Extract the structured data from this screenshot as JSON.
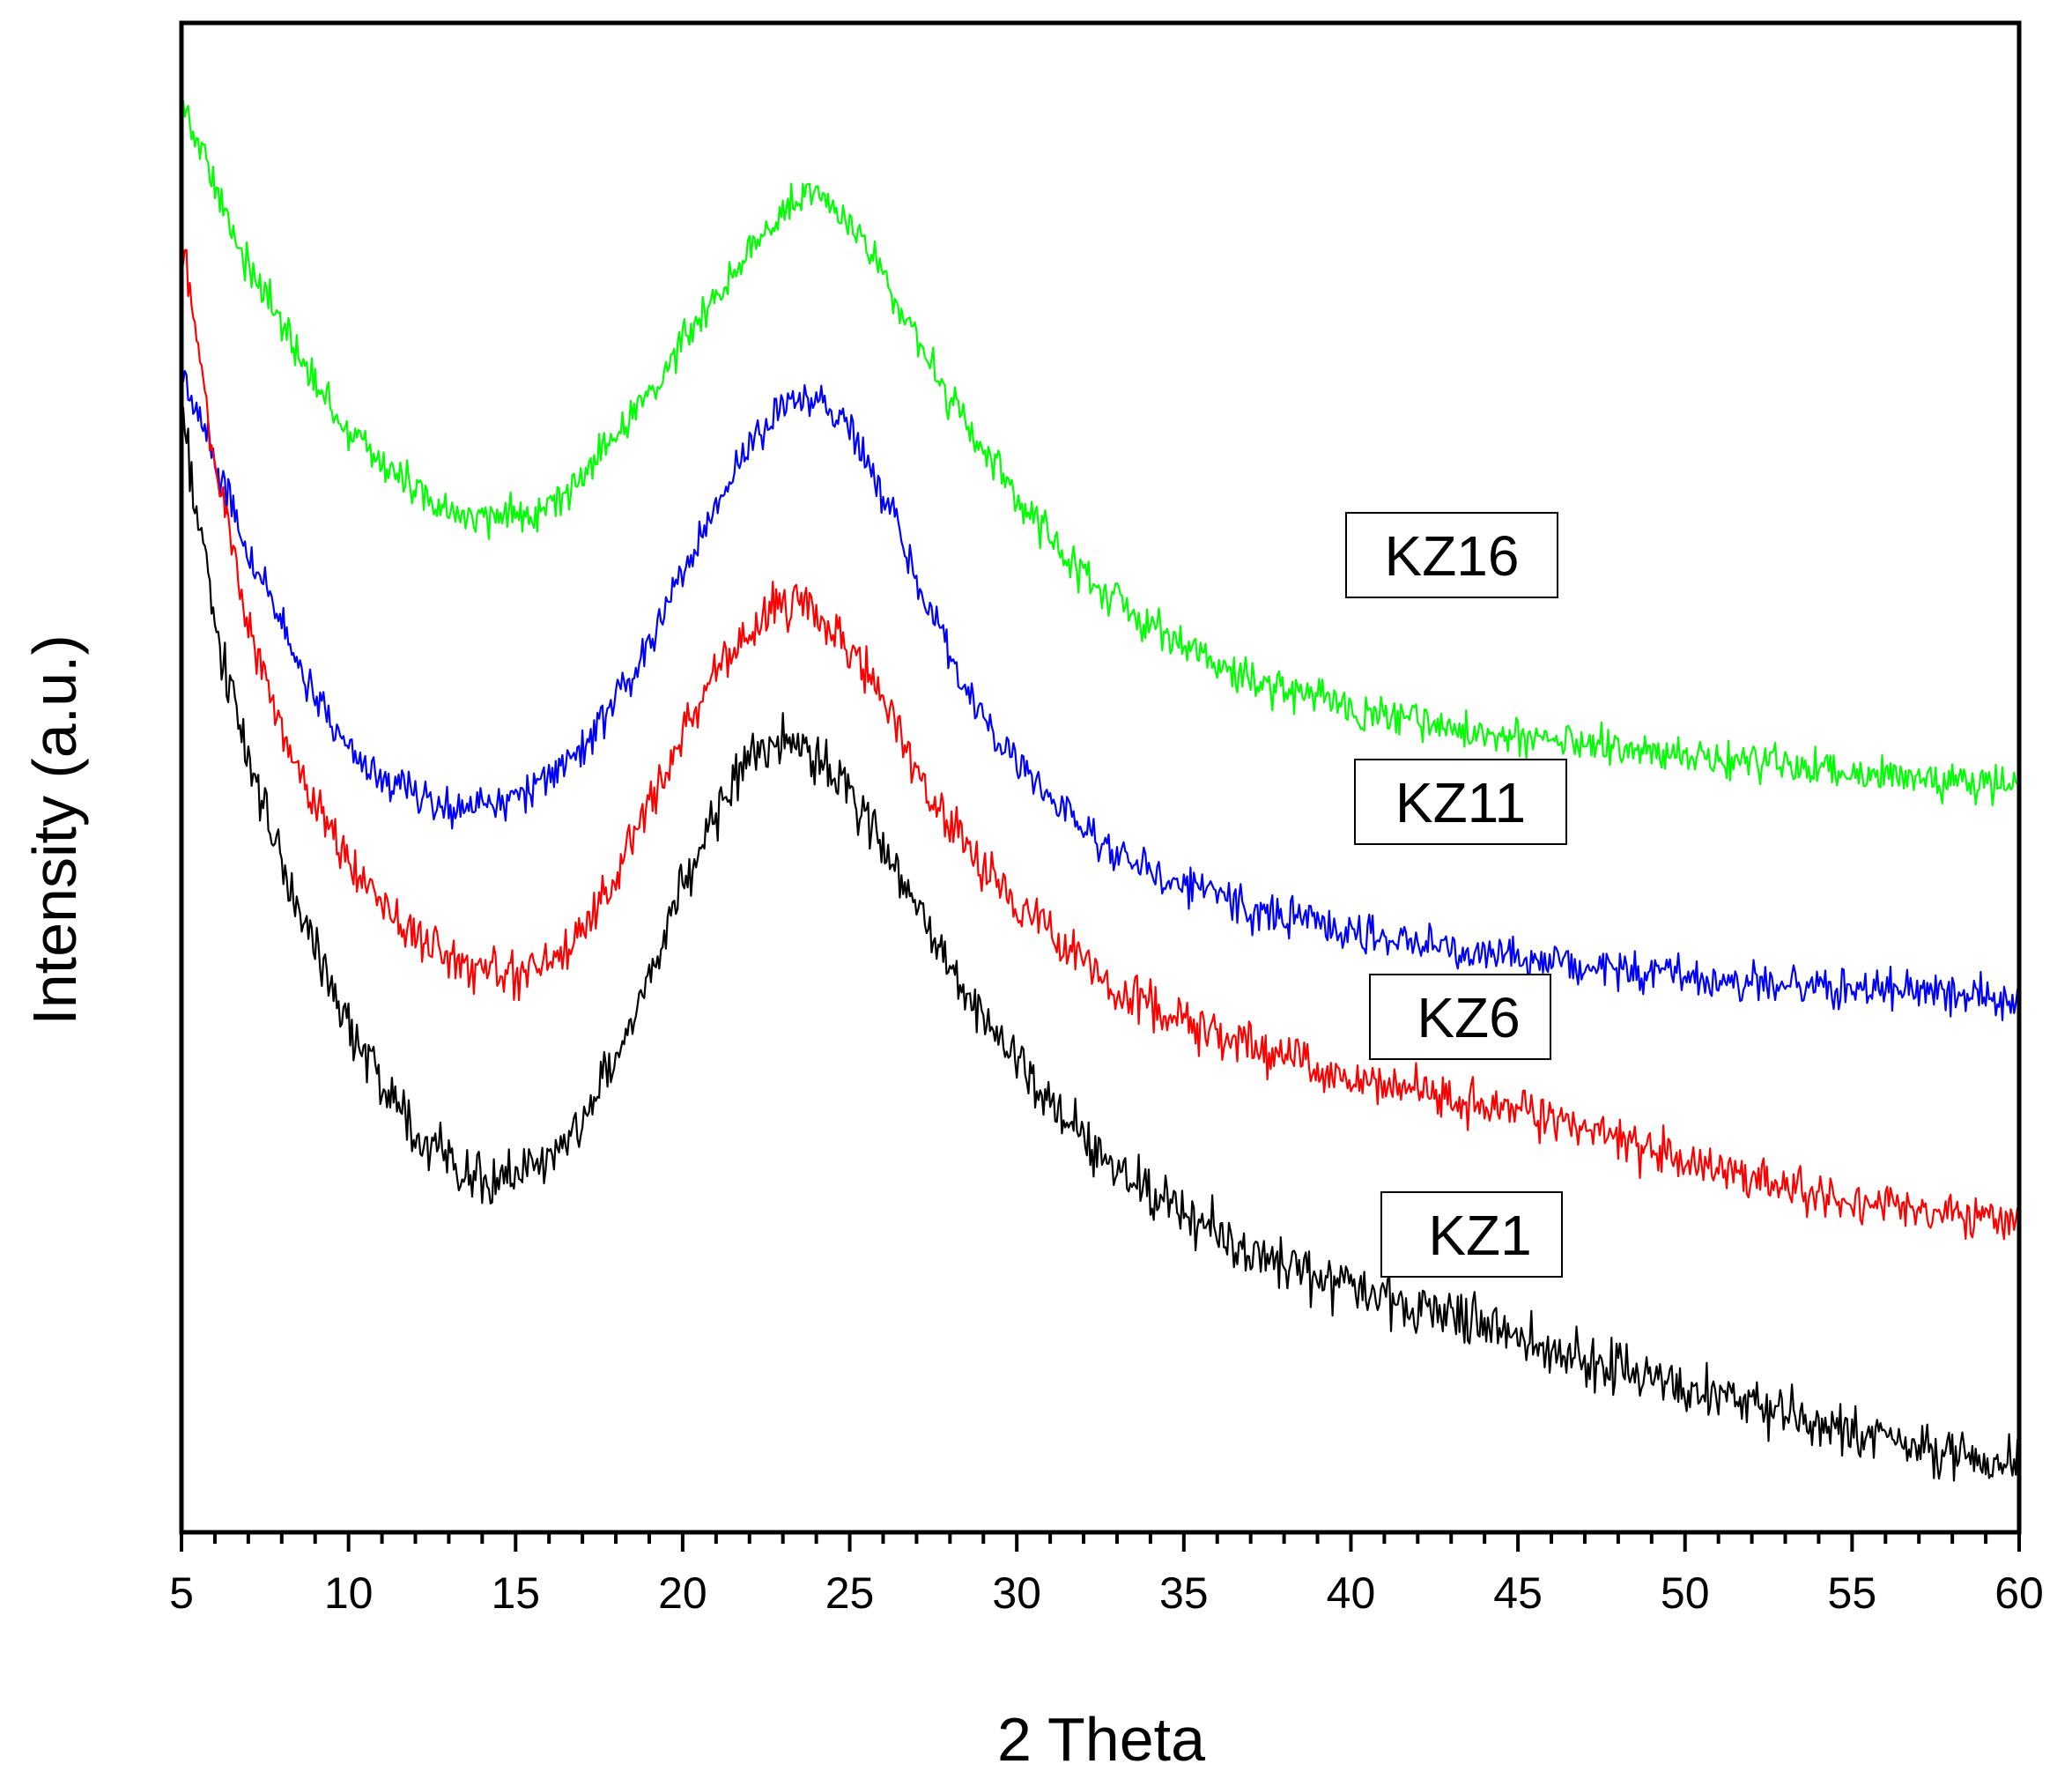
{
  "chart_data": {
    "type": "line",
    "title": "",
    "xlabel": "2 Theta",
    "ylabel": "Intensity (a.u.)",
    "xlim": [
      5,
      60
    ],
    "ylim": [
      0,
      100
    ],
    "x_ticks": [
      "5",
      "10",
      "15",
      "20",
      "25",
      "30",
      "35",
      "40",
      "45",
      "50",
      "55",
      "60"
    ],
    "x_minor_step": 1,
    "y_ticks_shown": false,
    "grid": false,
    "series": [
      {
        "name": "KZ16",
        "color": "#00ff00",
        "noise": 1.3,
        "x": [
          5,
          6,
          7,
          8,
          9,
          10,
          11,
          12,
          13,
          14,
          15,
          16,
          17,
          18,
          19,
          20,
          21,
          22,
          23,
          24,
          25,
          26,
          27,
          28,
          29,
          30,
          31,
          32,
          33,
          34,
          35,
          36,
          37,
          38,
          39,
          40,
          41,
          42,
          43,
          44,
          45,
          46,
          47,
          48,
          49,
          50,
          51,
          52,
          53,
          54,
          55,
          56,
          57,
          58,
          59,
          60
        ],
        "values": [
          95,
          89,
          84,
          80,
          76,
          73,
          71,
          69,
          67.5,
          67,
          67.5,
          68,
          70,
          72.5,
          75.5,
          79,
          82,
          85,
          87.5,
          88.5,
          87,
          83.5,
          79,
          75,
          71.5,
          68.5,
          66,
          63.5,
          61.5,
          60,
          58.7,
          57.5,
          56.5,
          55.8,
          55.2,
          54.6,
          54.1,
          53.7,
          53.3,
          53,
          52.7,
          52.4,
          52.1,
          51.8,
          51.6,
          51.4,
          51.2,
          51,
          50.8,
          50.6,
          50.4,
          50.2,
          50,
          49.8,
          49.7,
          49.5
        ]
      },
      {
        "name": "KZ11",
        "color": "#0000ff",
        "noise": 1.3,
        "x": [
          5,
          6,
          7,
          8,
          9,
          10,
          11,
          12,
          13,
          14,
          15,
          16,
          17,
          18,
          19,
          20,
          21,
          22,
          23,
          24,
          25,
          26,
          27,
          28,
          29,
          30,
          31,
          32,
          33,
          34,
          35,
          36,
          37,
          38,
          39,
          40,
          41,
          42,
          43,
          44,
          45,
          46,
          47,
          48,
          49,
          50,
          51,
          52,
          53,
          54,
          55,
          56,
          57,
          58,
          59,
          60
        ],
        "values": [
          77,
          71,
          65,
          60,
          55.5,
          52,
          50,
          49,
          48,
          48,
          48.8,
          50,
          52,
          55,
          59,
          63.5,
          68,
          72,
          74.5,
          75,
          73,
          68.5,
          63,
          58,
          54,
          51,
          48.5,
          46.5,
          45,
          43.8,
          42.8,
          42,
          41.3,
          40.7,
          40.2,
          39.8,
          39.4,
          39,
          38.7,
          38.4,
          38.1,
          37.8,
          37.5,
          37.3,
          37.1,
          36.9,
          36.7,
          36.5,
          36.3,
          36.2,
          36,
          35.9,
          35.8,
          35.7,
          35.6,
          35.5
        ]
      },
      {
        "name": "KZ6",
        "color": "#ff0000",
        "noise": 1.5,
        "x": [
          5,
          6,
          7,
          8,
          9,
          10,
          11,
          12,
          13,
          14,
          15,
          16,
          17,
          18,
          19,
          20,
          21,
          22,
          23,
          24,
          25,
          26,
          27,
          28,
          29,
          30,
          31,
          32,
          33,
          34,
          35,
          36,
          37,
          38,
          39,
          40,
          41,
          42,
          43,
          44,
          45,
          46,
          47,
          48,
          49,
          50,
          51,
          52,
          53,
          54,
          55,
          56,
          57,
          58,
          59,
          60
        ],
        "values": [
          86,
          71,
          60,
          53,
          48,
          44.5,
          41.5,
          39.5,
          38,
          37,
          37,
          37.8,
          40,
          43.5,
          48,
          53,
          57,
          60,
          61.5,
          61,
          59,
          55,
          50.5,
          47,
          44,
          41.5,
          39.5,
          37.5,
          36,
          35,
          34,
          33,
          32.2,
          31.5,
          30.8,
          30.1,
          29.6,
          29.2,
          28.8,
          28.4,
          28,
          27.4,
          26.7,
          26,
          25.3,
          24.6,
          24,
          23.4,
          22.9,
          22.4,
          22,
          21.6,
          21.3,
          21,
          20.8,
          20.5
        ]
      },
      {
        "name": "KZ1",
        "color": "#000000",
        "noise": 1.7,
        "x": [
          5,
          6,
          7,
          8,
          9,
          10,
          11,
          12,
          13,
          14,
          15,
          16,
          17,
          18,
          19,
          20,
          21,
          22,
          23,
          24,
          25,
          26,
          27,
          28,
          29,
          30,
          31,
          32,
          33,
          34,
          35,
          36,
          37,
          38,
          39,
          40,
          41,
          42,
          43,
          44,
          45,
          46,
          47,
          48,
          49,
          50,
          51,
          52,
          53,
          54,
          55,
          56,
          57,
          58,
          59,
          60
        ],
        "values": [
          74,
          60,
          51,
          44,
          38.5,
          33.5,
          29.5,
          26.5,
          24.5,
          23.5,
          23.5,
          25,
          27.5,
          31.5,
          37,
          43,
          48,
          51.5,
          52.5,
          51.5,
          49,
          45.5,
          41,
          37,
          34,
          31,
          28.5,
          26,
          24,
          22.5,
          21,
          19.8,
          18.8,
          17.8,
          17,
          16.3,
          15.6,
          15,
          14.3,
          13.6,
          12.9,
          12.2,
          11.5,
          10.8,
          10.2,
          9.6,
          9,
          8.4,
          7.8,
          7.2,
          6.7,
          6.2,
          5.7,
          5.2,
          4.8,
          4.5
        ]
      }
    ],
    "legend_boxes": [
      {
        "label": "KZ16",
        "series": "KZ16"
      },
      {
        "label": "KZ11",
        "series": "KZ11"
      },
      {
        "label": "KZ6",
        "series": "KZ6"
      },
      {
        "label": "KZ1",
        "series": "KZ1"
      }
    ]
  }
}
